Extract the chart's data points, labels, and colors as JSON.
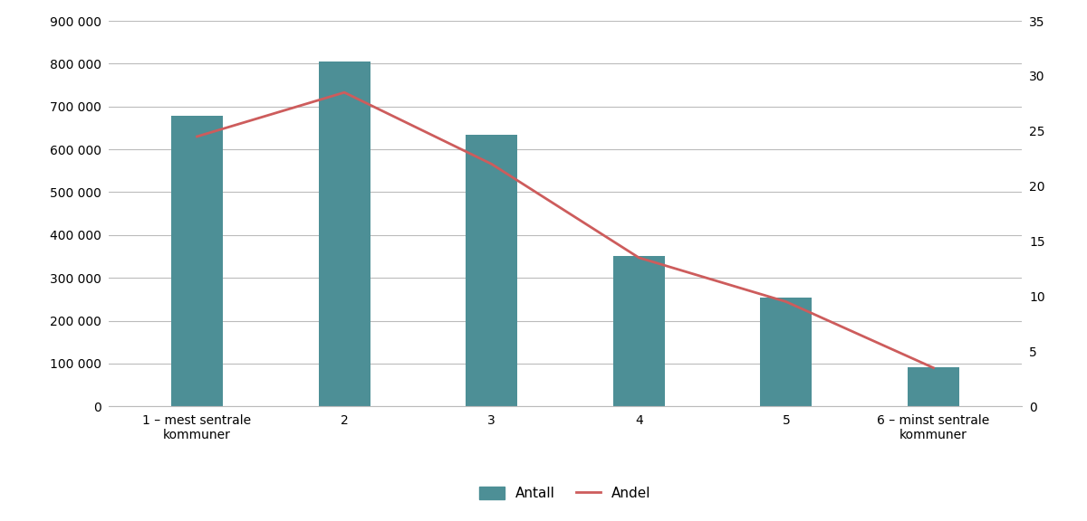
{
  "categories": [
    "1 – mest sentrale\nkommuner",
    "2",
    "3",
    "4",
    "5",
    "6 – minst sentrale\nkommuner"
  ],
  "bar_values": [
    678000,
    806000,
    634000,
    352000,
    255000,
    91000
  ],
  "line_values": [
    24.5,
    28.5,
    22.0,
    13.5,
    9.5,
    3.5
  ],
  "bar_color": "#4d8f96",
  "line_color": "#cd5c5c",
  "yleft_max": 900000,
  "yleft_ticks": [
    0,
    100000,
    200000,
    300000,
    400000,
    500000,
    600000,
    700000,
    800000,
    900000
  ],
  "yleft_ticklabels": [
    "0",
    "100 000",
    "200 000",
    "300 000",
    "400 000",
    "500 000",
    "600 000",
    "700 000",
    "800 000",
    "900 000"
  ],
  "yright_max": 35,
  "yright_ticks": [
    0,
    5,
    10,
    15,
    20,
    25,
    30,
    35
  ],
  "legend_antall": "Antall",
  "legend_andel": "Andel",
  "bg_color": "#ffffff",
  "grid_color": "#bbbbbb",
  "bar_width": 0.35
}
